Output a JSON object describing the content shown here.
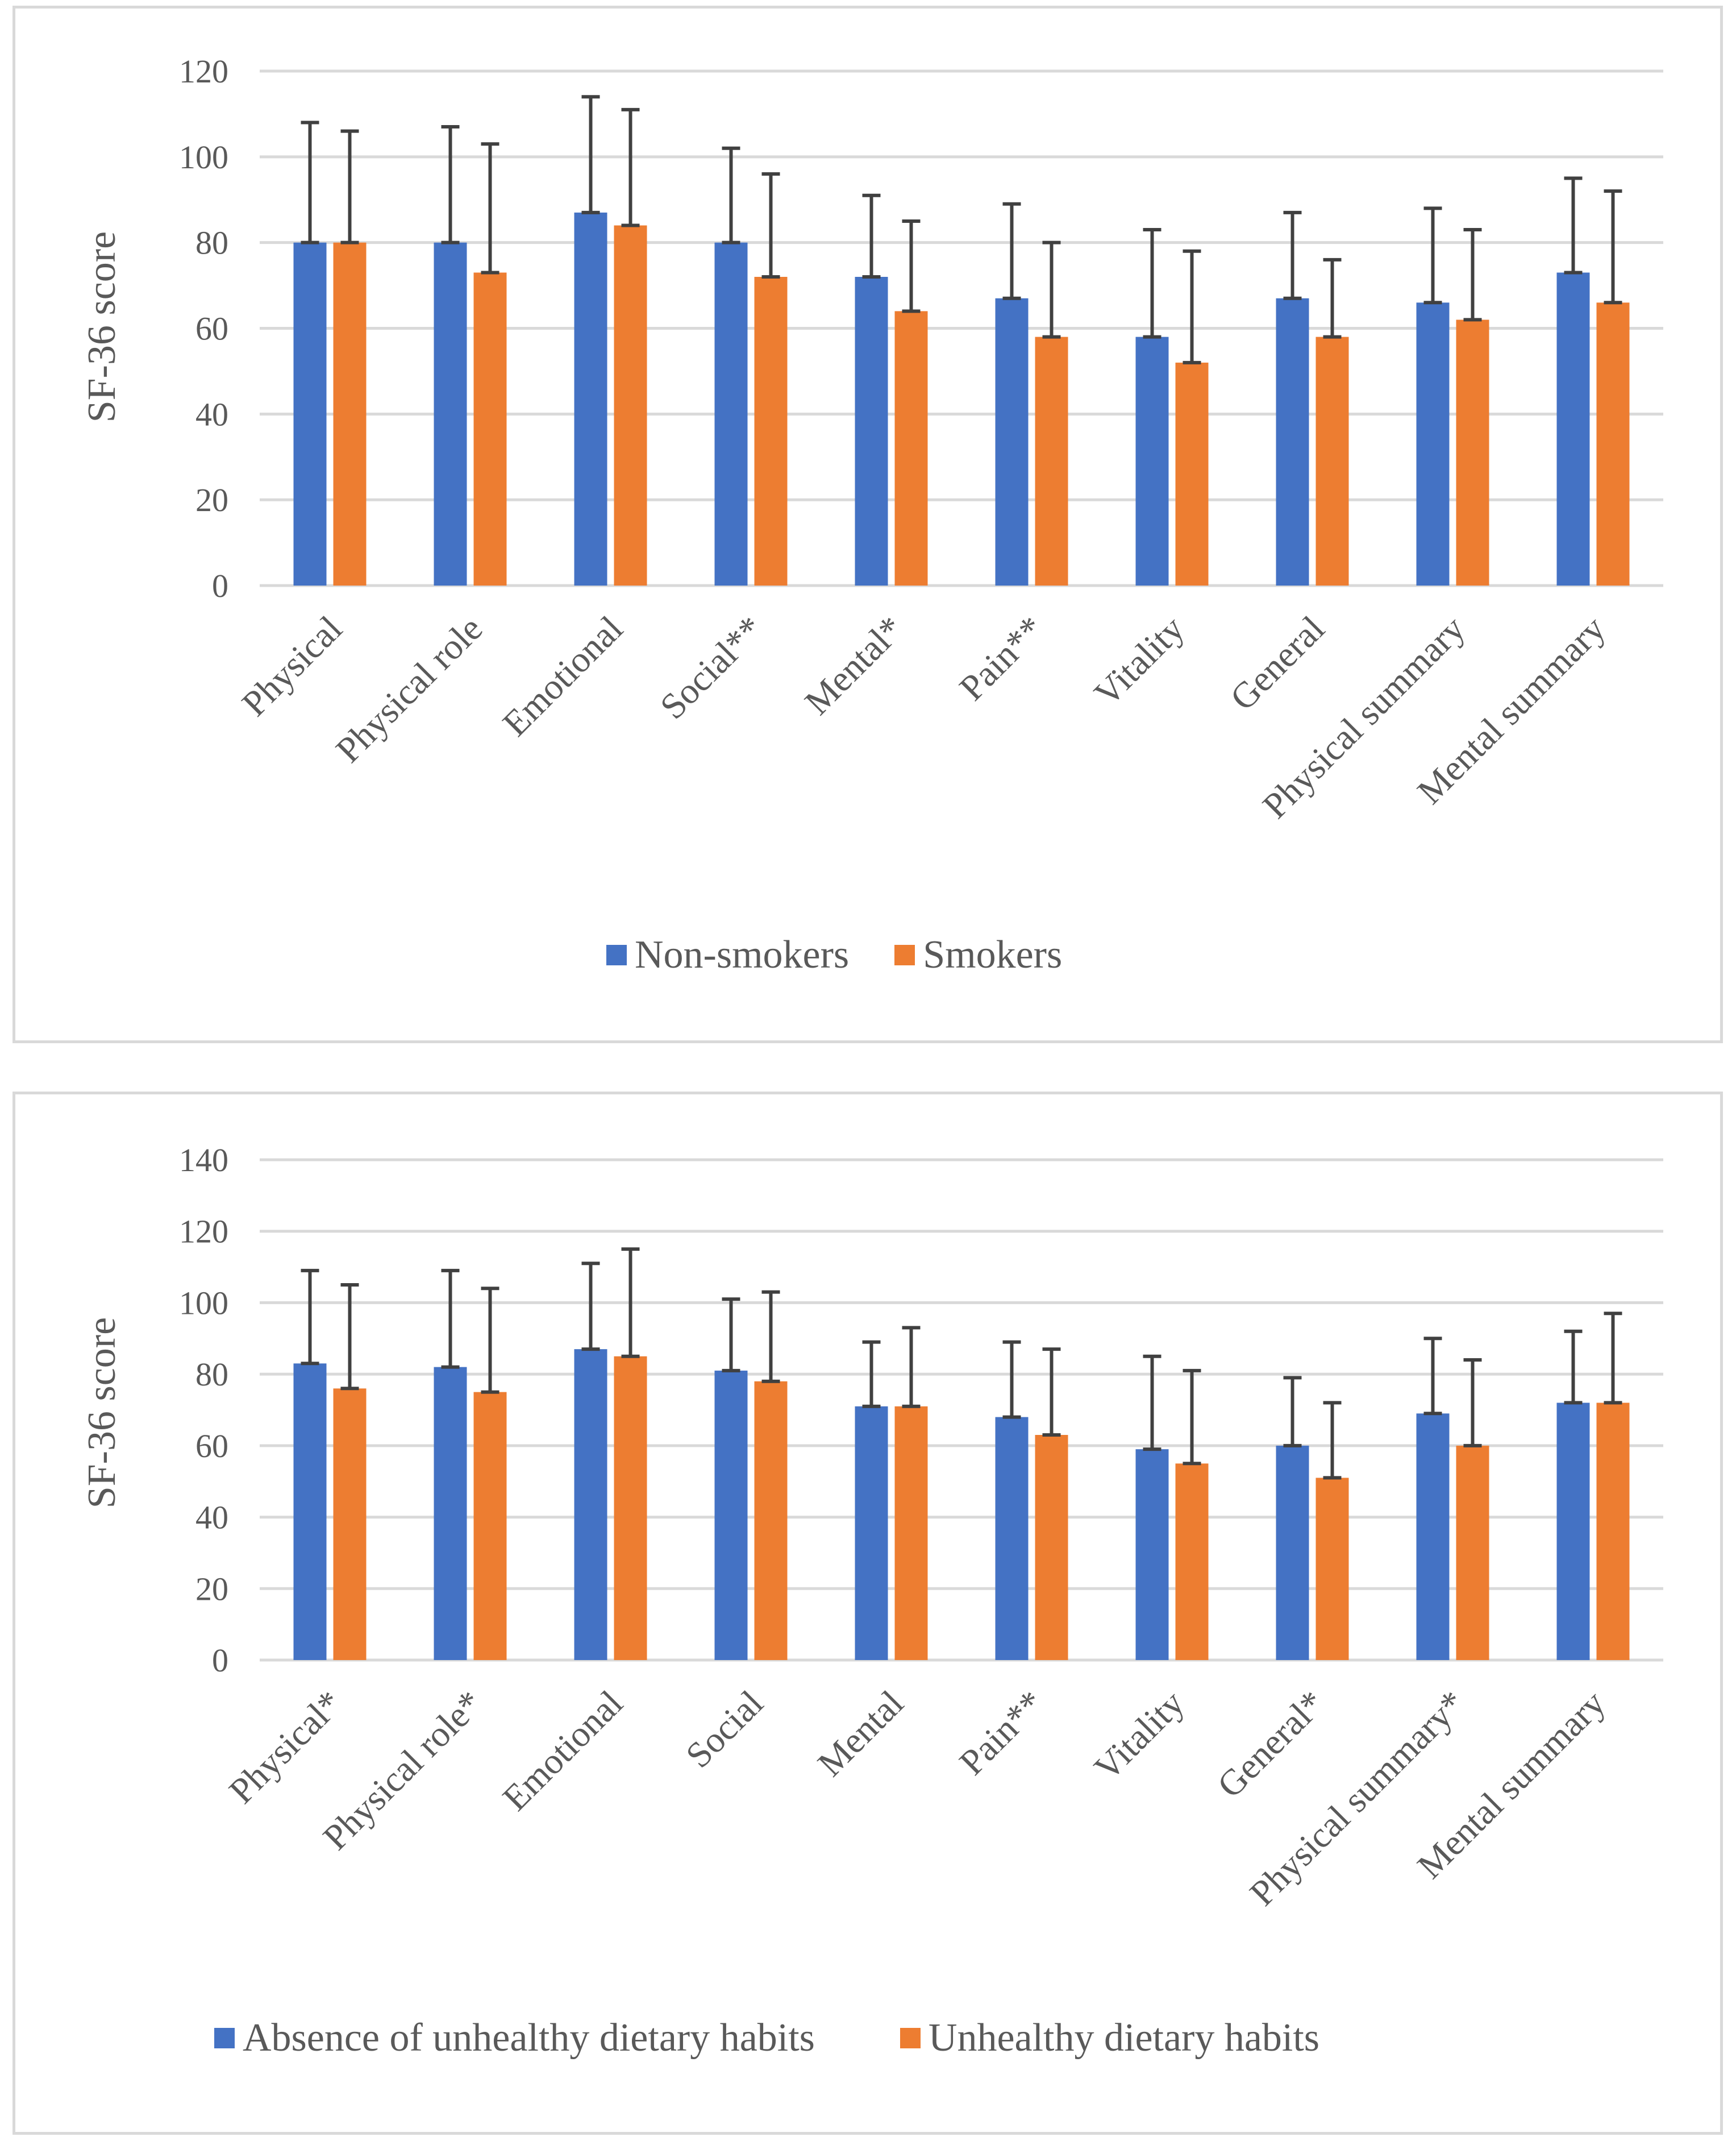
{
  "colors": {
    "series_a": "#4472c4",
    "series_b": "#ed7d31",
    "grid": "#d9d9d9",
    "error": "#404040",
    "text": "#595959"
  },
  "chart_data": [
    {
      "type": "bar",
      "error_bars": true,
      "title": "",
      "xlabel": "",
      "ylabel": "SF-36 score",
      "ylim": [
        0,
        120
      ],
      "yticks": [
        0,
        20,
        40,
        60,
        80,
        100,
        120
      ],
      "grid": true,
      "legend_position": "bottom",
      "categories": [
        "Physical",
        "Physical role",
        "Emotional",
        "Social**",
        "Mental*",
        "Pain**",
        "Vitality",
        "General",
        "Physical summary",
        "Mental summary"
      ],
      "series": [
        {
          "name": "Non-smokers",
          "values": [
            80,
            80,
            87,
            80,
            72,
            67,
            58,
            67,
            66,
            73
          ],
          "error_upper": [
            108,
            107,
            114,
            102,
            91,
            89,
            83,
            87,
            88,
            95
          ]
        },
        {
          "name": "Smokers",
          "values": [
            80,
            73,
            84,
            72,
            64,
            58,
            52,
            58,
            62,
            66
          ],
          "error_upper": [
            106,
            103,
            111,
            96,
            85,
            80,
            78,
            76,
            83,
            92
          ]
        }
      ]
    },
    {
      "type": "bar",
      "error_bars": true,
      "title": "",
      "xlabel": "",
      "ylabel": "SF-36  score",
      "ylim": [
        0,
        140
      ],
      "yticks": [
        0,
        20,
        40,
        60,
        80,
        100,
        120,
        140
      ],
      "grid": true,
      "legend_position": "bottom",
      "categories": [
        "Physical*",
        "Physical role*",
        "Emotional",
        "Social",
        "Mental",
        "Pain**",
        "Vitality",
        "General*",
        "Physical summary*",
        "Mental summary"
      ],
      "series": [
        {
          "name": "Absence of unhealthy dietary habits",
          "values": [
            83,
            82,
            87,
            81,
            71,
            68,
            59,
            60,
            69,
            72
          ],
          "error_upper": [
            109,
            109,
            111,
            101,
            89,
            89,
            85,
            79,
            90,
            92
          ]
        },
        {
          "name": "Unhealthy dietary habits",
          "values": [
            76,
            75,
            85,
            78,
            71,
            63,
            55,
            51,
            60,
            72
          ],
          "error_upper": [
            105,
            104,
            115,
            103,
            93,
            87,
            81,
            72,
            84,
            97
          ]
        }
      ]
    }
  ]
}
